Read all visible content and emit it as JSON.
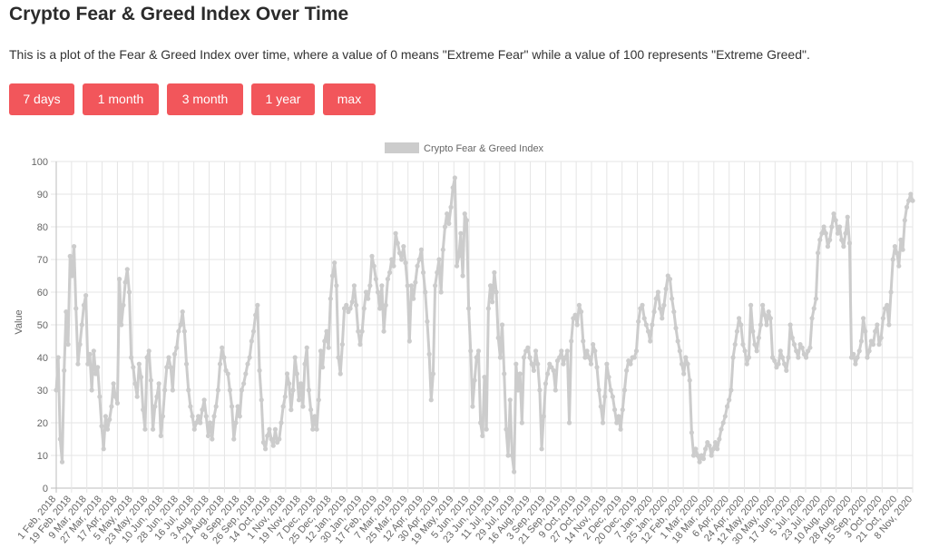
{
  "page": {
    "title": "Crypto Fear & Greed Index Over Time",
    "description": "This is a plot of the Fear & Greed Index over time, where a value of 0 means \"Extreme Fear\" while a value of 100 represents \"Extreme Greed\"."
  },
  "buttons": [
    "7 days",
    "1 month",
    "3 month",
    "1 year",
    "max"
  ],
  "colors": {
    "button": "#f2565b",
    "series": "#cccccc",
    "grid": "#e5e5e5"
  },
  "chart_data": {
    "type": "line",
    "legend": "Crypto Fear & Greed Index",
    "legend_position": "top",
    "ylabel": "Value",
    "ylim": [
      0,
      100
    ],
    "yticks": [
      0,
      10,
      20,
      30,
      40,
      50,
      60,
      70,
      80,
      90,
      100
    ],
    "grid": true,
    "xticks": [
      "1 Feb, 2018",
      "19 Feb, 2018",
      "9 Mar, 2018",
      "27 Mar, 2018",
      "17 Apr, 2018",
      "5 May, 2018",
      "23 May, 2018",
      "10 Jun, 2018",
      "28 Jun, 2018",
      "16 Jul, 2018",
      "3 Aug, 2018",
      "21 Aug, 2018",
      "8 Sep, 2018",
      "26 Sep, 2018",
      "14 Oct, 2018",
      "1 Nov, 2018",
      "19 Nov, 2018",
      "7 Dec, 2018",
      "25 Dec, 2018",
      "12 Jan, 2019",
      "30 Jan, 2019",
      "17 Feb, 2019",
      "7 Mar, 2019",
      "25 Mar, 2019",
      "12 Apr, 2019",
      "30 Apr, 2019",
      "19 May, 2019",
      "5 Jun, 2019",
      "23 Jun, 2019",
      "11 Jul, 2019",
      "29 Jul, 2019",
      "16 Aug, 2019",
      "3 Sep, 2019",
      "21 Sep, 2019",
      "9 Oct, 2019",
      "27 Oct, 2019",
      "14 Nov, 2019",
      "2 Dec, 2019",
      "20 Dec, 2019",
      "7 Jan, 2020",
      "25 Jan, 2020",
      "12 Feb, 2020",
      "1 Mar, 2020",
      "18 Mar, 2020",
      "6 Apr, 2020",
      "24 Apr, 2020",
      "12 May, 2020",
      "30 May, 2020",
      "17 Jun, 2020",
      "5 Jul, 2020",
      "23 Jul, 2020",
      "10 Aug, 2020",
      "28 Aug, 2020",
      "15 Sep, 2020",
      "3 Oct, 2020",
      "21 Oct, 2020",
      "8 Nov, 2020"
    ],
    "series": [
      {
        "name": "Crypto Fear & Greed Index",
        "values": [
          30,
          40,
          15,
          8,
          36,
          54,
          44,
          71,
          65,
          74,
          55,
          38,
          44,
          50,
          56,
          59,
          38,
          41,
          30,
          42,
          35,
          37,
          28,
          19,
          12,
          22,
          18,
          21,
          25,
          32,
          28,
          26,
          64,
          50,
          56,
          63,
          67,
          60,
          40,
          37,
          32,
          28,
          38,
          34,
          24,
          18,
          40,
          42,
          33,
          18,
          25,
          28,
          32,
          16,
          22,
          30,
          37,
          40,
          37,
          30,
          41,
          43,
          48,
          50,
          54,
          48,
          38,
          30,
          25,
          22,
          18,
          20,
          22,
          20,
          24,
          27,
          22,
          16,
          20,
          15,
          22,
          25,
          30,
          38,
          43,
          40,
          36,
          35,
          30,
          25,
          15,
          20,
          25,
          22,
          30,
          32,
          35,
          38,
          40,
          45,
          48,
          53,
          56,
          36,
          27,
          14,
          12,
          16,
          18,
          15,
          13,
          18,
          14,
          15,
          20,
          25,
          28,
          35,
          32,
          24,
          30,
          40,
          35,
          27,
          32,
          25,
          38,
          43,
          30,
          24,
          18,
          22,
          18,
          27,
          42,
          37,
          45,
          48,
          43,
          58,
          65,
          69,
          62,
          40,
          35,
          44,
          55,
          56,
          54,
          55,
          57,
          62,
          56,
          48,
          44,
          48,
          55,
          60,
          58,
          62,
          71,
          68,
          64,
          60,
          55,
          62,
          48,
          56,
          64,
          66,
          70,
          68,
          78,
          75,
          72,
          70,
          74,
          69,
          62,
          45,
          62,
          58,
          63,
          68,
          70,
          73,
          66,
          60,
          51,
          41,
          27,
          35,
          62,
          66,
          70,
          60,
          73,
          80,
          84,
          81,
          86,
          92,
          95,
          68,
          71,
          78,
          65,
          84,
          82,
          55,
          42,
          25,
          33,
          40,
          42,
          20,
          16,
          34,
          18,
          55,
          62,
          57,
          66,
          60,
          46,
          40,
          50,
          35,
          18,
          10,
          27,
          10,
          5,
          38,
          30,
          35,
          20,
          40,
          42,
          43,
          40,
          38,
          36,
          42,
          38,
          30,
          12,
          22,
          32,
          35,
          38,
          37,
          36,
          30,
          39,
          40,
          42,
          38,
          40,
          42,
          20,
          45,
          52,
          53,
          50,
          56,
          54,
          45,
          40,
          42,
          40,
          38,
          44,
          42,
          37,
          30,
          25,
          20,
          28,
          38,
          34,
          30,
          28,
          24,
          20,
          22,
          18,
          24,
          30,
          36,
          39,
          38,
          40,
          40,
          42,
          51,
          55,
          56,
          52,
          50,
          48,
          45,
          50,
          54,
          58,
          60,
          55,
          52,
          56,
          61,
          65,
          64,
          58,
          54,
          49,
          45,
          42,
          38,
          35,
          40,
          38,
          33,
          17,
          10,
          12,
          10,
          8,
          10,
          9,
          12,
          14,
          13,
          10,
          12,
          14,
          12,
          15,
          18,
          20,
          22,
          25,
          27,
          30,
          40,
          44,
          48,
          52,
          50,
          44,
          42,
          38,
          40,
          56,
          48,
          44,
          42,
          46,
          50,
          56,
          53,
          50,
          54,
          52,
          40,
          39,
          37,
          38,
          42,
          40,
          38,
          36,
          40,
          50,
          46,
          44,
          42,
          40,
          44,
          43,
          41,
          40,
          42,
          43,
          52,
          55,
          58,
          72,
          76,
          78,
          80,
          78,
          74,
          76,
          80,
          84,
          82,
          78,
          80,
          76,
          74,
          78,
          83,
          75,
          40,
          41,
          38,
          40,
          42,
          45,
          52,
          48,
          40,
          42,
          45,
          44,
          48,
          50,
          44,
          46,
          52,
          55,
          56,
          50,
          60,
          70,
          74,
          72,
          68,
          76,
          73,
          82,
          86,
          88,
          90,
          88
        ]
      }
    ]
  }
}
